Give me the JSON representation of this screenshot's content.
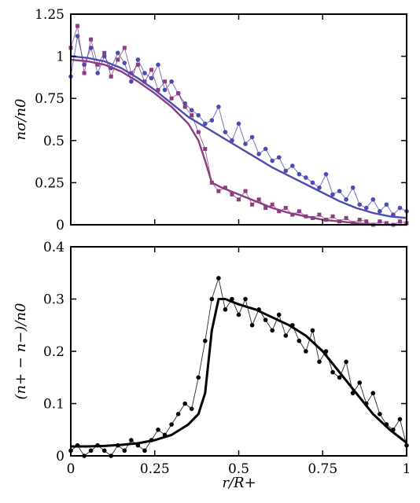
{
  "chart_data": [
    {
      "type": "line",
      "ylabel": "nσ/n0",
      "xlim": [
        0,
        1
      ],
      "ylim": [
        0,
        1.25
      ],
      "yticks": [
        "0",
        "0.25",
        "0.5",
        "0.75",
        "1",
        "1.25"
      ],
      "xticks": [
        "",
        "",
        "",
        "",
        ""
      ],
      "grid": false,
      "series": [
        {
          "color": "#4b4bb0",
          "marker": "circle",
          "x": [
            0.0,
            0.02,
            0.04,
            0.06,
            0.08,
            0.1,
            0.12,
            0.14,
            0.16,
            0.18,
            0.2,
            0.22,
            0.24,
            0.26,
            0.28,
            0.3,
            0.32,
            0.34,
            0.36,
            0.38,
            0.4,
            0.42,
            0.44,
            0.46,
            0.48,
            0.5,
            0.52,
            0.54,
            0.56,
            0.58,
            0.6,
            0.62,
            0.64,
            0.66,
            0.68,
            0.7,
            0.72,
            0.74,
            0.76,
            0.78,
            0.8,
            0.82,
            0.84,
            0.86,
            0.88,
            0.9,
            0.92,
            0.94,
            0.96,
            0.98,
            1.0
          ],
          "y": [
            0.88,
            1.12,
            0.95,
            1.05,
            0.9,
            1.0,
            0.93,
            1.02,
            0.96,
            0.85,
            0.98,
            0.9,
            0.87,
            0.95,
            0.8,
            0.85,
            0.78,
            0.72,
            0.68,
            0.65,
            0.6,
            0.62,
            0.7,
            0.55,
            0.5,
            0.6,
            0.48,
            0.52,
            0.42,
            0.45,
            0.38,
            0.4,
            0.32,
            0.35,
            0.3,
            0.28,
            0.25,
            0.22,
            0.3,
            0.18,
            0.2,
            0.15,
            0.22,
            0.12,
            0.1,
            0.15,
            0.08,
            0.12,
            0.06,
            0.1,
            0.08
          ]
        },
        {
          "color": "#8c3d82",
          "marker": "square",
          "x": [
            0.0,
            0.02,
            0.04,
            0.06,
            0.08,
            0.1,
            0.12,
            0.14,
            0.16,
            0.18,
            0.2,
            0.22,
            0.24,
            0.26,
            0.28,
            0.3,
            0.32,
            0.34,
            0.36,
            0.38,
            0.4,
            0.42,
            0.44,
            0.46,
            0.48,
            0.5,
            0.52,
            0.54,
            0.56,
            0.58,
            0.6,
            0.62,
            0.64,
            0.66,
            0.68,
            0.7,
            0.72,
            0.74,
            0.76,
            0.78,
            0.8,
            0.82,
            0.84,
            0.86,
            0.88,
            0.9,
            0.92,
            0.94,
            0.96,
            0.98,
            1.0
          ],
          "y": [
            1.05,
            1.18,
            0.9,
            1.1,
            0.95,
            1.02,
            0.88,
            0.98,
            1.05,
            0.9,
            0.95,
            0.85,
            0.92,
            0.8,
            0.85,
            0.75,
            0.78,
            0.7,
            0.65,
            0.55,
            0.45,
            0.25,
            0.2,
            0.22,
            0.18,
            0.15,
            0.2,
            0.12,
            0.15,
            0.1,
            0.12,
            0.08,
            0.1,
            0.06,
            0.08,
            0.05,
            0.04,
            0.06,
            0.03,
            0.05,
            0.02,
            0.04,
            0.01,
            0.03,
            0.02,
            0.0,
            0.02,
            0.01,
            0.0,
            0.02,
            0.01
          ]
        },
        {
          "color": "#4b4bb0",
          "marker": "none",
          "x": [
            0.0,
            0.05,
            0.1,
            0.15,
            0.2,
            0.25,
            0.3,
            0.35,
            0.4,
            0.45,
            0.5,
            0.55,
            0.6,
            0.65,
            0.7,
            0.75,
            0.8,
            0.85,
            0.9,
            0.95,
            1.0
          ],
          "y": [
            1.0,
            0.99,
            0.97,
            0.93,
            0.87,
            0.8,
            0.72,
            0.64,
            0.58,
            0.52,
            0.46,
            0.4,
            0.34,
            0.29,
            0.24,
            0.19,
            0.14,
            0.1,
            0.07,
            0.05,
            0.04
          ]
        },
        {
          "color": "#8c3d82",
          "marker": "none",
          "x": [
            0.0,
            0.05,
            0.1,
            0.15,
            0.2,
            0.25,
            0.3,
            0.35,
            0.38,
            0.4,
            0.42,
            0.45,
            0.5,
            0.55,
            0.6,
            0.65,
            0.7,
            0.75,
            0.8,
            0.85,
            0.9,
            0.95,
            1.0
          ],
          "y": [
            0.98,
            0.97,
            0.95,
            0.91,
            0.85,
            0.78,
            0.7,
            0.6,
            0.5,
            0.38,
            0.25,
            0.22,
            0.18,
            0.14,
            0.1,
            0.07,
            0.05,
            0.03,
            0.02,
            0.01,
            0.0,
            0.0,
            0.0
          ]
        }
      ]
    },
    {
      "type": "line",
      "ylabel": "(n+ − n−)/n0",
      "xlabel": "r/R+",
      "xlim": [
        0,
        1
      ],
      "ylim": [
        0,
        0.4
      ],
      "yticks": [
        "0",
        "0.1",
        "0.2",
        "0.3",
        "0.4"
      ],
      "xticks": [
        "0",
        "0.25",
        "0.5",
        "0.75",
        "1"
      ],
      "grid": false,
      "series": [
        {
          "color": "#000000",
          "marker": "circle",
          "x": [
            0.0,
            0.02,
            0.04,
            0.06,
            0.08,
            0.1,
            0.12,
            0.14,
            0.16,
            0.18,
            0.2,
            0.22,
            0.24,
            0.26,
            0.28,
            0.3,
            0.32,
            0.34,
            0.36,
            0.38,
            0.4,
            0.42,
            0.44,
            0.46,
            0.48,
            0.5,
            0.52,
            0.54,
            0.56,
            0.58,
            0.6,
            0.62,
            0.64,
            0.66,
            0.68,
            0.7,
            0.72,
            0.74,
            0.76,
            0.78,
            0.8,
            0.82,
            0.84,
            0.86,
            0.88,
            0.9,
            0.92,
            0.94,
            0.96,
            0.98,
            1.0
          ],
          "y": [
            0.01,
            0.02,
            0.0,
            0.01,
            0.02,
            0.01,
            0.0,
            0.02,
            0.01,
            0.03,
            0.02,
            0.01,
            0.03,
            0.05,
            0.04,
            0.06,
            0.08,
            0.1,
            0.09,
            0.15,
            0.22,
            0.3,
            0.34,
            0.28,
            0.3,
            0.27,
            0.3,
            0.25,
            0.28,
            0.26,
            0.24,
            0.27,
            0.23,
            0.25,
            0.22,
            0.2,
            0.24,
            0.18,
            0.2,
            0.16,
            0.15,
            0.18,
            0.12,
            0.14,
            0.1,
            0.12,
            0.08,
            0.06,
            0.05,
            0.07,
            0.02
          ]
        },
        {
          "color": "#000000",
          "marker": "none",
          "x": [
            0.0,
            0.05,
            0.1,
            0.15,
            0.2,
            0.25,
            0.3,
            0.35,
            0.38,
            0.4,
            0.42,
            0.44,
            0.46,
            0.5,
            0.55,
            0.6,
            0.65,
            0.7,
            0.75,
            0.8,
            0.85,
            0.9,
            0.95,
            1.0
          ],
          "y": [
            0.018,
            0.018,
            0.019,
            0.021,
            0.024,
            0.03,
            0.04,
            0.06,
            0.08,
            0.12,
            0.24,
            0.3,
            0.3,
            0.29,
            0.28,
            0.265,
            0.25,
            0.23,
            0.2,
            0.16,
            0.12,
            0.08,
            0.05,
            0.025
          ]
        }
      ]
    }
  ]
}
